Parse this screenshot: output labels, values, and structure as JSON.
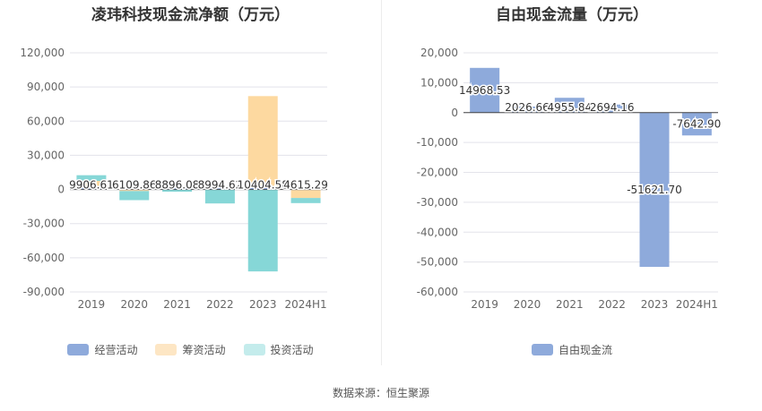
{
  "source_label": "数据来源：恒生聚源",
  "chart_data": [
    {
      "type": "bar",
      "stacked": true,
      "title": "凌玮科技现金流净额（万元）",
      "categories": [
        "2019",
        "2020",
        "2021",
        "2022",
        "2023",
        "2024H1"
      ],
      "yticks": [
        "120,000",
        "90,000",
        "60,000",
        "30,000",
        "0",
        "-30,000",
        "-60,000",
        "-90,000"
      ],
      "ylim": [
        -90000,
        120000
      ],
      "series": [
        {
          "name": "经营活动",
          "color": "#8eaadb",
          "values": [
            1500,
            -500,
            1200,
            1000,
            2000,
            -500
          ]
        },
        {
          "name": "筹资活动",
          "color": "#fdd9a0",
          "values": [
            6000,
            -900,
            0,
            -300,
            80000,
            -7000
          ]
        },
        {
          "name": "投资活动",
          "color": "#86d7d7",
          "values": [
            5000,
            -8000,
            -2000,
            -12000,
            -72000,
            -4500
          ]
        }
      ],
      "data_labels": [
        "9906.61",
        "6109.86",
        "8896.08",
        "8994.62",
        "10404.58",
        "4615.29"
      ],
      "grid": true,
      "legend_position": "bottom"
    },
    {
      "type": "bar",
      "title": "自由现金流量（万元）",
      "categories": [
        "2019",
        "2020",
        "2021",
        "2022",
        "2023",
        "2024H1"
      ],
      "yticks": [
        "20,000",
        "10,000",
        "0",
        "-10,000",
        "-20,000",
        "-30,000",
        "-40,000",
        "-50,000",
        "-60,000"
      ],
      "ylim": [
        -60000,
        20000
      ],
      "series": [
        {
          "name": "自由现金流",
          "color": "#8eaadb",
          "values": [
            14968.53,
            2026.66,
            4955.84,
            2694.16,
            -51621.7,
            -7642.9
          ]
        }
      ],
      "data_labels": [
        "14968.53",
        "2026.66",
        "4955.84",
        "2694.16",
        "-51621.70",
        "-7642.90"
      ],
      "grid": true,
      "legend_position": "bottom"
    }
  ]
}
